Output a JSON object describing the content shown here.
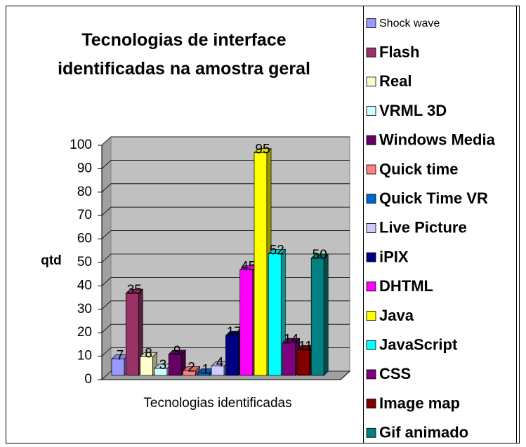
{
  "chart_data": {
    "type": "bar3d",
    "title": "Tecnologias de interface identificadas na amostra geral",
    "ylabel": "qtd",
    "categories": [
      "Tecnologias identificadas"
    ],
    "ylim": [
      0,
      100
    ],
    "yticks": [
      0,
      10,
      20,
      30,
      40,
      50,
      60,
      70,
      80,
      90,
      100
    ],
    "grid": true,
    "legend": "right",
    "series": [
      {
        "name": "Shock wave",
        "color": "#9999ff",
        "values": [
          7
        ]
      },
      {
        "name": "Flash",
        "color": "#993366",
        "values": [
          35
        ]
      },
      {
        "name": "Real",
        "color": "#ffffcc",
        "values": [
          8
        ]
      },
      {
        "name": "VRML 3D",
        "color": "#ccffff",
        "values": [
          3
        ]
      },
      {
        "name": "Windows Media",
        "color": "#660066",
        "values": [
          9
        ]
      },
      {
        "name": "Quick time",
        "color": "#ff8080",
        "values": [
          2
        ]
      },
      {
        "name": "Quick Time VR",
        "color": "#0066cc",
        "values": [
          1
        ]
      },
      {
        "name": "Live Picture",
        "color": "#ccccff",
        "values": [
          4
        ]
      },
      {
        "name": "iPIX",
        "color": "#000080",
        "values": [
          17
        ]
      },
      {
        "name": "DHTML",
        "color": "#ff00ff",
        "values": [
          45
        ]
      },
      {
        "name": "Java",
        "color": "#ffff00",
        "values": [
          95
        ]
      },
      {
        "name": "JavaScript",
        "color": "#00ffff",
        "values": [
          52
        ]
      },
      {
        "name": "CSS",
        "color": "#800080",
        "values": [
          14
        ]
      },
      {
        "name": "Image map",
        "color": "#800000",
        "values": [
          11
        ]
      },
      {
        "name": "Gif animado",
        "color": "#008080",
        "values": [
          50
        ]
      }
    ]
  }
}
